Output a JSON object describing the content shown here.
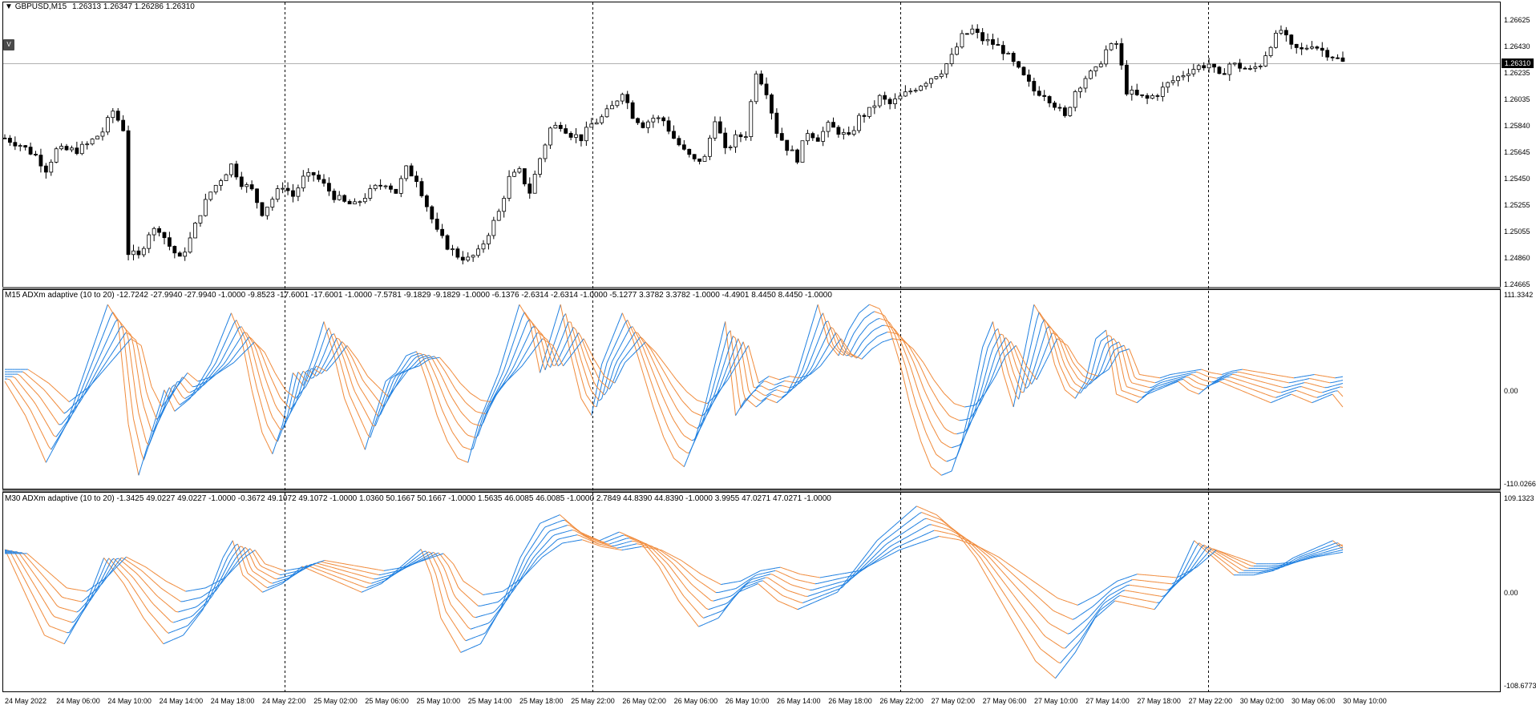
{
  "header": {
    "symbol": "GBPUSD,M15",
    "ohlc": "1.26313 1.26347 1.26286 1.26310",
    "v_button": "V"
  },
  "panes": {
    "pane1_label": "M15 ADXm adaptive (10 to 20) -12.7242 -27.9940 -27.9940 -1.0000 -9.8523 -17.6001 -17.6001 -1.0000 -7.5781 -9.1829 -9.1829 -1.0000 -6.1376 -2.6314 -2.6314 -1.0000 -5.1277 3.3782 3.3782 -1.0000 -4.4901 8.4450 8.4450 -1.0000",
    "pane2_label": "M30 ADXm adaptive (10 to 20) -1.3425 49.0227 49.0227 -1.0000 -0.3672 49.1072 49.1072 -1.0000 1.0360 50.1667 50.1667 -1.0000 1.5635 46.0085 46.0085 -1.0000 2.7849 44.8390 44.8390 -1.0000 3.9955 47.0271 47.0271 -1.0000"
  },
  "colors": {
    "candle": "#000000",
    "up_line": "#1e7fe0",
    "down_line": "#f08a3a",
    "grid_separator": "#000000",
    "current_price_line": "#b0b0b0"
  },
  "chart_data": [
    {
      "type": "candlestick",
      "symbol": "GBPUSD",
      "timeframe": "M15",
      "y_ticks": [
        "1.26625",
        "1.26430",
        "1.26235",
        "1.26035",
        "1.25840",
        "1.25645",
        "1.25450",
        "1.25255",
        "1.25055",
        "1.24860",
        "1.24665"
      ],
      "ylim": [
        1.24665,
        1.26625
      ],
      "current_price": "1.26310",
      "x_ticks": [
        "24 May 2022",
        "24 May 06:00",
        "24 May 10:00",
        "24 May 14:00",
        "24 May 18:00",
        "24 May 22:00",
        "25 May 02:00",
        "25 May 06:00",
        "25 May 10:00",
        "25 May 14:00",
        "25 May 18:00",
        "25 May 22:00",
        "26 May 02:00",
        "26 May 06:00",
        "26 May 10:00",
        "26 May 14:00",
        "26 May 18:00",
        "26 May 22:00",
        "27 May 02:00",
        "27 May 06:00",
        "27 May 10:00",
        "27 May 14:00",
        "27 May 18:00",
        "27 May 22:00",
        "30 May 02:00",
        "30 May 06:00",
        "30 May 10:00"
      ],
      "close_path": [
        [
          0,
          1.2575
        ],
        [
          3,
          1.257
        ],
        [
          6,
          1.2562
        ],
        [
          8,
          1.2552
        ],
        [
          10,
          1.2566
        ],
        [
          14,
          1.2566
        ],
        [
          16,
          1.257
        ],
        [
          19,
          1.258
        ],
        [
          21,
          1.2595
        ],
        [
          23,
          1.2582
        ],
        [
          24,
          1.249
        ],
        [
          26,
          1.2487
        ],
        [
          28,
          1.2505
        ],
        [
          30,
          1.2508
        ],
        [
          32,
          1.2495
        ],
        [
          34,
          1.2485
        ],
        [
          36,
          1.25
        ],
        [
          38,
          1.252
        ],
        [
          40,
          1.2535
        ],
        [
          42,
          1.2545
        ],
        [
          44,
          1.2555
        ],
        [
          46,
          1.2542
        ],
        [
          48,
          1.2536
        ],
        [
          50,
          1.252
        ],
        [
          52,
          1.253
        ],
        [
          54,
          1.254
        ],
        [
          56,
          1.2532
        ],
        [
          58,
          1.2545
        ],
        [
          60,
          1.2548
        ],
        [
          62,
          1.254
        ],
        [
          64,
          1.2532
        ],
        [
          66,
          1.2527
        ],
        [
          68,
          1.2525
        ],
        [
          70,
          1.2532
        ],
        [
          72,
          1.2538
        ],
        [
          74,
          1.2542
        ],
        [
          76,
          1.2535
        ],
        [
          78,
          1.2552
        ],
        [
          80,
          1.2545
        ],
        [
          82,
          1.2525
        ],
        [
          84,
          1.2505
        ],
        [
          86,
          1.2495
        ],
        [
          88,
          1.2488
        ],
        [
          90,
          1.2485
        ],
        [
          92,
          1.249
        ],
        [
          94,
          1.2505
        ],
        [
          96,
          1.252
        ],
        [
          98,
          1.2545
        ],
        [
          100,
          1.255
        ],
        [
          102,
          1.2535
        ],
        [
          104,
          1.256
        ],
        [
          106,
          1.2582
        ],
        [
          108,
          1.2585
        ],
        [
          110,
          1.2578
        ],
        [
          112,
          1.2575
        ],
        [
          114,
          1.2585
        ],
        [
          116,
          1.259
        ],
        [
          118,
          1.2598
        ],
        [
          120,
          1.261
        ],
        [
          122,
          1.2592
        ],
        [
          124,
          1.2585
        ],
        [
          126,
          1.259
        ],
        [
          128,
          1.2588
        ],
        [
          130,
          1.2575
        ],
        [
          132,
          1.2565
        ],
        [
          134,
          1.2558
        ],
        [
          136,
          1.256
        ],
        [
          138,
          1.259
        ],
        [
          140,
          1.2565
        ],
        [
          142,
          1.2575
        ],
        [
          144,
          1.2578
        ],
        [
          146,
          1.2625
        ],
        [
          148,
          1.261
        ],
        [
          150,
          1.258
        ],
        [
          152,
          1.2568
        ],
        [
          154,
          1.256
        ],
        [
          156,
          1.258
        ],
        [
          158,
          1.2575
        ],
        [
          160,
          1.2584
        ],
        [
          162,
          1.258
        ],
        [
          164,
          1.2575
        ],
        [
          166,
          1.259
        ],
        [
          168,
          1.2595
        ],
        [
          170,
          1.2605
        ],
        [
          172,
          1.26
        ],
        [
          174,
          1.2605
        ],
        [
          176,
          1.261
        ],
        [
          178,
          1.2615
        ],
        [
          180,
          1.262
        ],
        [
          182,
          1.2625
        ],
        [
          184,
          1.2635
        ],
        [
          186,
          1.265
        ],
        [
          188,
          1.2655
        ],
        [
          190,
          1.2648
        ],
        [
          192,
          1.2645
        ],
        [
          194,
          1.264
        ],
        [
          196,
          1.263
        ],
        [
          198,
          1.262
        ],
        [
          200,
          1.261
        ],
        [
          202,
          1.2608
        ],
        [
          204,
          1.26
        ],
        [
          206,
          1.259
        ],
        [
          208,
          1.261
        ],
        [
          210,
          1.262
        ],
        [
          212,
          1.2625
        ],
        [
          214,
          1.264
        ],
        [
          216,
          1.2645
        ],
        [
          218,
          1.261
        ],
        [
          220,
          1.2606
        ],
        [
          222,
          1.2604
        ],
        [
          224,
          1.2608
        ],
        [
          226,
          1.2615
        ],
        [
          228,
          1.262
        ],
        [
          230,
          1.2625
        ],
        [
          232,
          1.2628
        ],
        [
          234,
          1.263
        ],
        [
          236,
          1.262
        ],
        [
          238,
          1.263
        ],
        [
          240,
          1.2628
        ],
        [
          242,
          1.2625
        ],
        [
          244,
          1.263
        ],
        [
          246,
          1.2645
        ],
        [
          248,
          1.2655
        ],
        [
          250,
          1.2642
        ],
        [
          252,
          1.264
        ],
        [
          254,
          1.2645
        ],
        [
          256,
          1.264
        ],
        [
          258,
          1.2636
        ],
        [
          260,
          1.2631
        ]
      ]
    },
    {
      "type": "line",
      "name": "M15 ADXm adaptive (10 to 20)",
      "y_ticks": [
        "111.3342",
        "0.00",
        "-110.0266"
      ],
      "ylim": [
        -110.0266,
        111.3342
      ],
      "note_colors": "blue = rising, orange = falling",
      "base_path": [
        [
          0,
          10
        ],
        [
          4,
          -30
        ],
        [
          8,
          -85
        ],
        [
          12,
          -40
        ],
        [
          16,
          30
        ],
        [
          20,
          100
        ],
        [
          22,
          80
        ],
        [
          24,
          -40
        ],
        [
          26,
          -100
        ],
        [
          28,
          -60
        ],
        [
          31,
          0
        ],
        [
          33,
          -25
        ],
        [
          36,
          -10
        ],
        [
          40,
          30
        ],
        [
          44,
          90
        ],
        [
          46,
          60
        ],
        [
          48,
          0
        ],
        [
          50,
          -50
        ],
        [
          52,
          -75
        ],
        [
          54,
          -40
        ],
        [
          56,
          20
        ],
        [
          58,
          5
        ],
        [
          60,
          40
        ],
        [
          62,
          80
        ],
        [
          64,
          40
        ],
        [
          66,
          -10
        ],
        [
          68,
          -40
        ],
        [
          70,
          -70
        ],
        [
          72,
          -30
        ],
        [
          74,
          10
        ],
        [
          76,
          20
        ],
        [
          78,
          40
        ],
        [
          80,
          45
        ],
        [
          82,
          10
        ],
        [
          84,
          -30
        ],
        [
          86,
          -60
        ],
        [
          88,
          -80
        ],
        [
          90,
          -85
        ],
        [
          92,
          -40
        ],
        [
          94,
          -10
        ],
        [
          96,
          20
        ],
        [
          98,
          60
        ],
        [
          100,
          100
        ],
        [
          102,
          80
        ],
        [
          104,
          20
        ],
        [
          106,
          60
        ],
        [
          108,
          100
        ],
        [
          110,
          40
        ],
        [
          112,
          -10
        ],
        [
          114,
          -30
        ],
        [
          116,
          30
        ],
        [
          118,
          60
        ],
        [
          120,
          90
        ],
        [
          122,
          60
        ],
        [
          124,
          20
        ],
        [
          126,
          -20
        ],
        [
          128,
          -55
        ],
        [
          130,
          -80
        ],
        [
          132,
          -90
        ],
        [
          134,
          -60
        ],
        [
          136,
          -20
        ],
        [
          138,
          30
        ],
        [
          140,
          80
        ],
        [
          142,
          -30
        ],
        [
          144,
          -10
        ],
        [
          146,
          -20
        ],
        [
          148,
          -10
        ],
        [
          150,
          -15
        ],
        [
          152,
          -5
        ],
        [
          154,
          20
        ],
        [
          156,
          60
        ],
        [
          158,
          100
        ],
        [
          160,
          55
        ],
        [
          162,
          40
        ],
        [
          164,
          70
        ],
        [
          166,
          90
        ],
        [
          168,
          100
        ],
        [
          170,
          95
        ],
        [
          172,
          70
        ],
        [
          174,
          30
        ],
        [
          176,
          -20
        ],
        [
          178,
          -60
        ],
        [
          180,
          -90
        ],
        [
          182,
          -100
        ],
        [
          184,
          -95
        ],
        [
          186,
          -60
        ],
        [
          188,
          -10
        ],
        [
          190,
          50
        ],
        [
          192,
          80
        ],
        [
          194,
          20
        ],
        [
          196,
          -20
        ],
        [
          198,
          40
        ],
        [
          200,
          100
        ],
        [
          202,
          80
        ],
        [
          204,
          30
        ],
        [
          206,
          0
        ],
        [
          208,
          -10
        ],
        [
          210,
          10
        ],
        [
          212,
          60
        ],
        [
          214,
          70
        ],
        [
          216,
          -5
        ],
        [
          218,
          -10
        ],
        [
          220,
          -15
        ],
        [
          222,
          -5
        ],
        [
          224,
          0
        ],
        [
          226,
          5
        ],
        [
          228,
          10
        ],
        [
          230,
          0
        ],
        [
          232,
          -5
        ],
        [
          234,
          5
        ],
        [
          236,
          10
        ],
        [
          238,
          5
        ],
        [
          240,
          0
        ],
        [
          242,
          -5
        ],
        [
          244,
          -10
        ],
        [
          246,
          -15
        ],
        [
          248,
          -10
        ],
        [
          250,
          -5
        ],
        [
          252,
          -10
        ],
        [
          254,
          -15
        ],
        [
          256,
          -10
        ],
        [
          258,
          -5
        ],
        [
          260,
          -20
        ]
      ]
    },
    {
      "type": "line",
      "name": "M30 ADXm adaptive (10 to 20)",
      "y_ticks": [
        "109.1323",
        "0.00",
        "-108.6773"
      ],
      "ylim": [
        -108.6773,
        109.1323
      ],
      "note_colors": "blue = rising, orange = falling",
      "base_path": [
        [
          0,
          50
        ],
        [
          4,
          0
        ],
        [
          8,
          -50
        ],
        [
          12,
          -60
        ],
        [
          16,
          -20
        ],
        [
          20,
          40
        ],
        [
          24,
          10
        ],
        [
          28,
          -30
        ],
        [
          32,
          -60
        ],
        [
          36,
          -50
        ],
        [
          40,
          -20
        ],
        [
          44,
          40
        ],
        [
          46,
          60
        ],
        [
          48,
          20
        ],
        [
          52,
          0
        ],
        [
          56,
          10
        ],
        [
          60,
          30
        ],
        [
          64,
          20
        ],
        [
          68,
          10
        ],
        [
          72,
          0
        ],
        [
          76,
          10
        ],
        [
          80,
          30
        ],
        [
          84,
          50
        ],
        [
          86,
          20
        ],
        [
          88,
          -30
        ],
        [
          92,
          -70
        ],
        [
          96,
          -60
        ],
        [
          100,
          -20
        ],
        [
          104,
          40
        ],
        [
          108,
          80
        ],
        [
          112,
          90
        ],
        [
          116,
          70
        ],
        [
          120,
          60
        ],
        [
          124,
          70
        ],
        [
          128,
          60
        ],
        [
          132,
          30
        ],
        [
          136,
          -10
        ],
        [
          140,
          -40
        ],
        [
          144,
          -30
        ],
        [
          148,
          0
        ],
        [
          152,
          10
        ],
        [
          156,
          -10
        ],
        [
          160,
          -20
        ],
        [
          164,
          -10
        ],
        [
          168,
          0
        ],
        [
          172,
          30
        ],
        [
          176,
          60
        ],
        [
          180,
          80
        ],
        [
          184,
          100
        ],
        [
          188,
          90
        ],
        [
          192,
          70
        ],
        [
          196,
          40
        ],
        [
          200,
          0
        ],
        [
          204,
          -40
        ],
        [
          208,
          -80
        ],
        [
          212,
          -100
        ],
        [
          216,
          -70
        ],
        [
          220,
          -30
        ],
        [
          224,
          -10
        ],
        [
          228,
          -15
        ],
        [
          232,
          -20
        ],
        [
          236,
          10
        ],
        [
          240,
          60
        ],
        [
          244,
          40
        ],
        [
          248,
          20
        ],
        [
          252,
          20
        ],
        [
          256,
          25
        ],
        [
          260,
          40
        ],
        [
          264,
          50
        ],
        [
          268,
          60
        ],
        [
          270,
          50
        ]
      ]
    }
  ]
}
